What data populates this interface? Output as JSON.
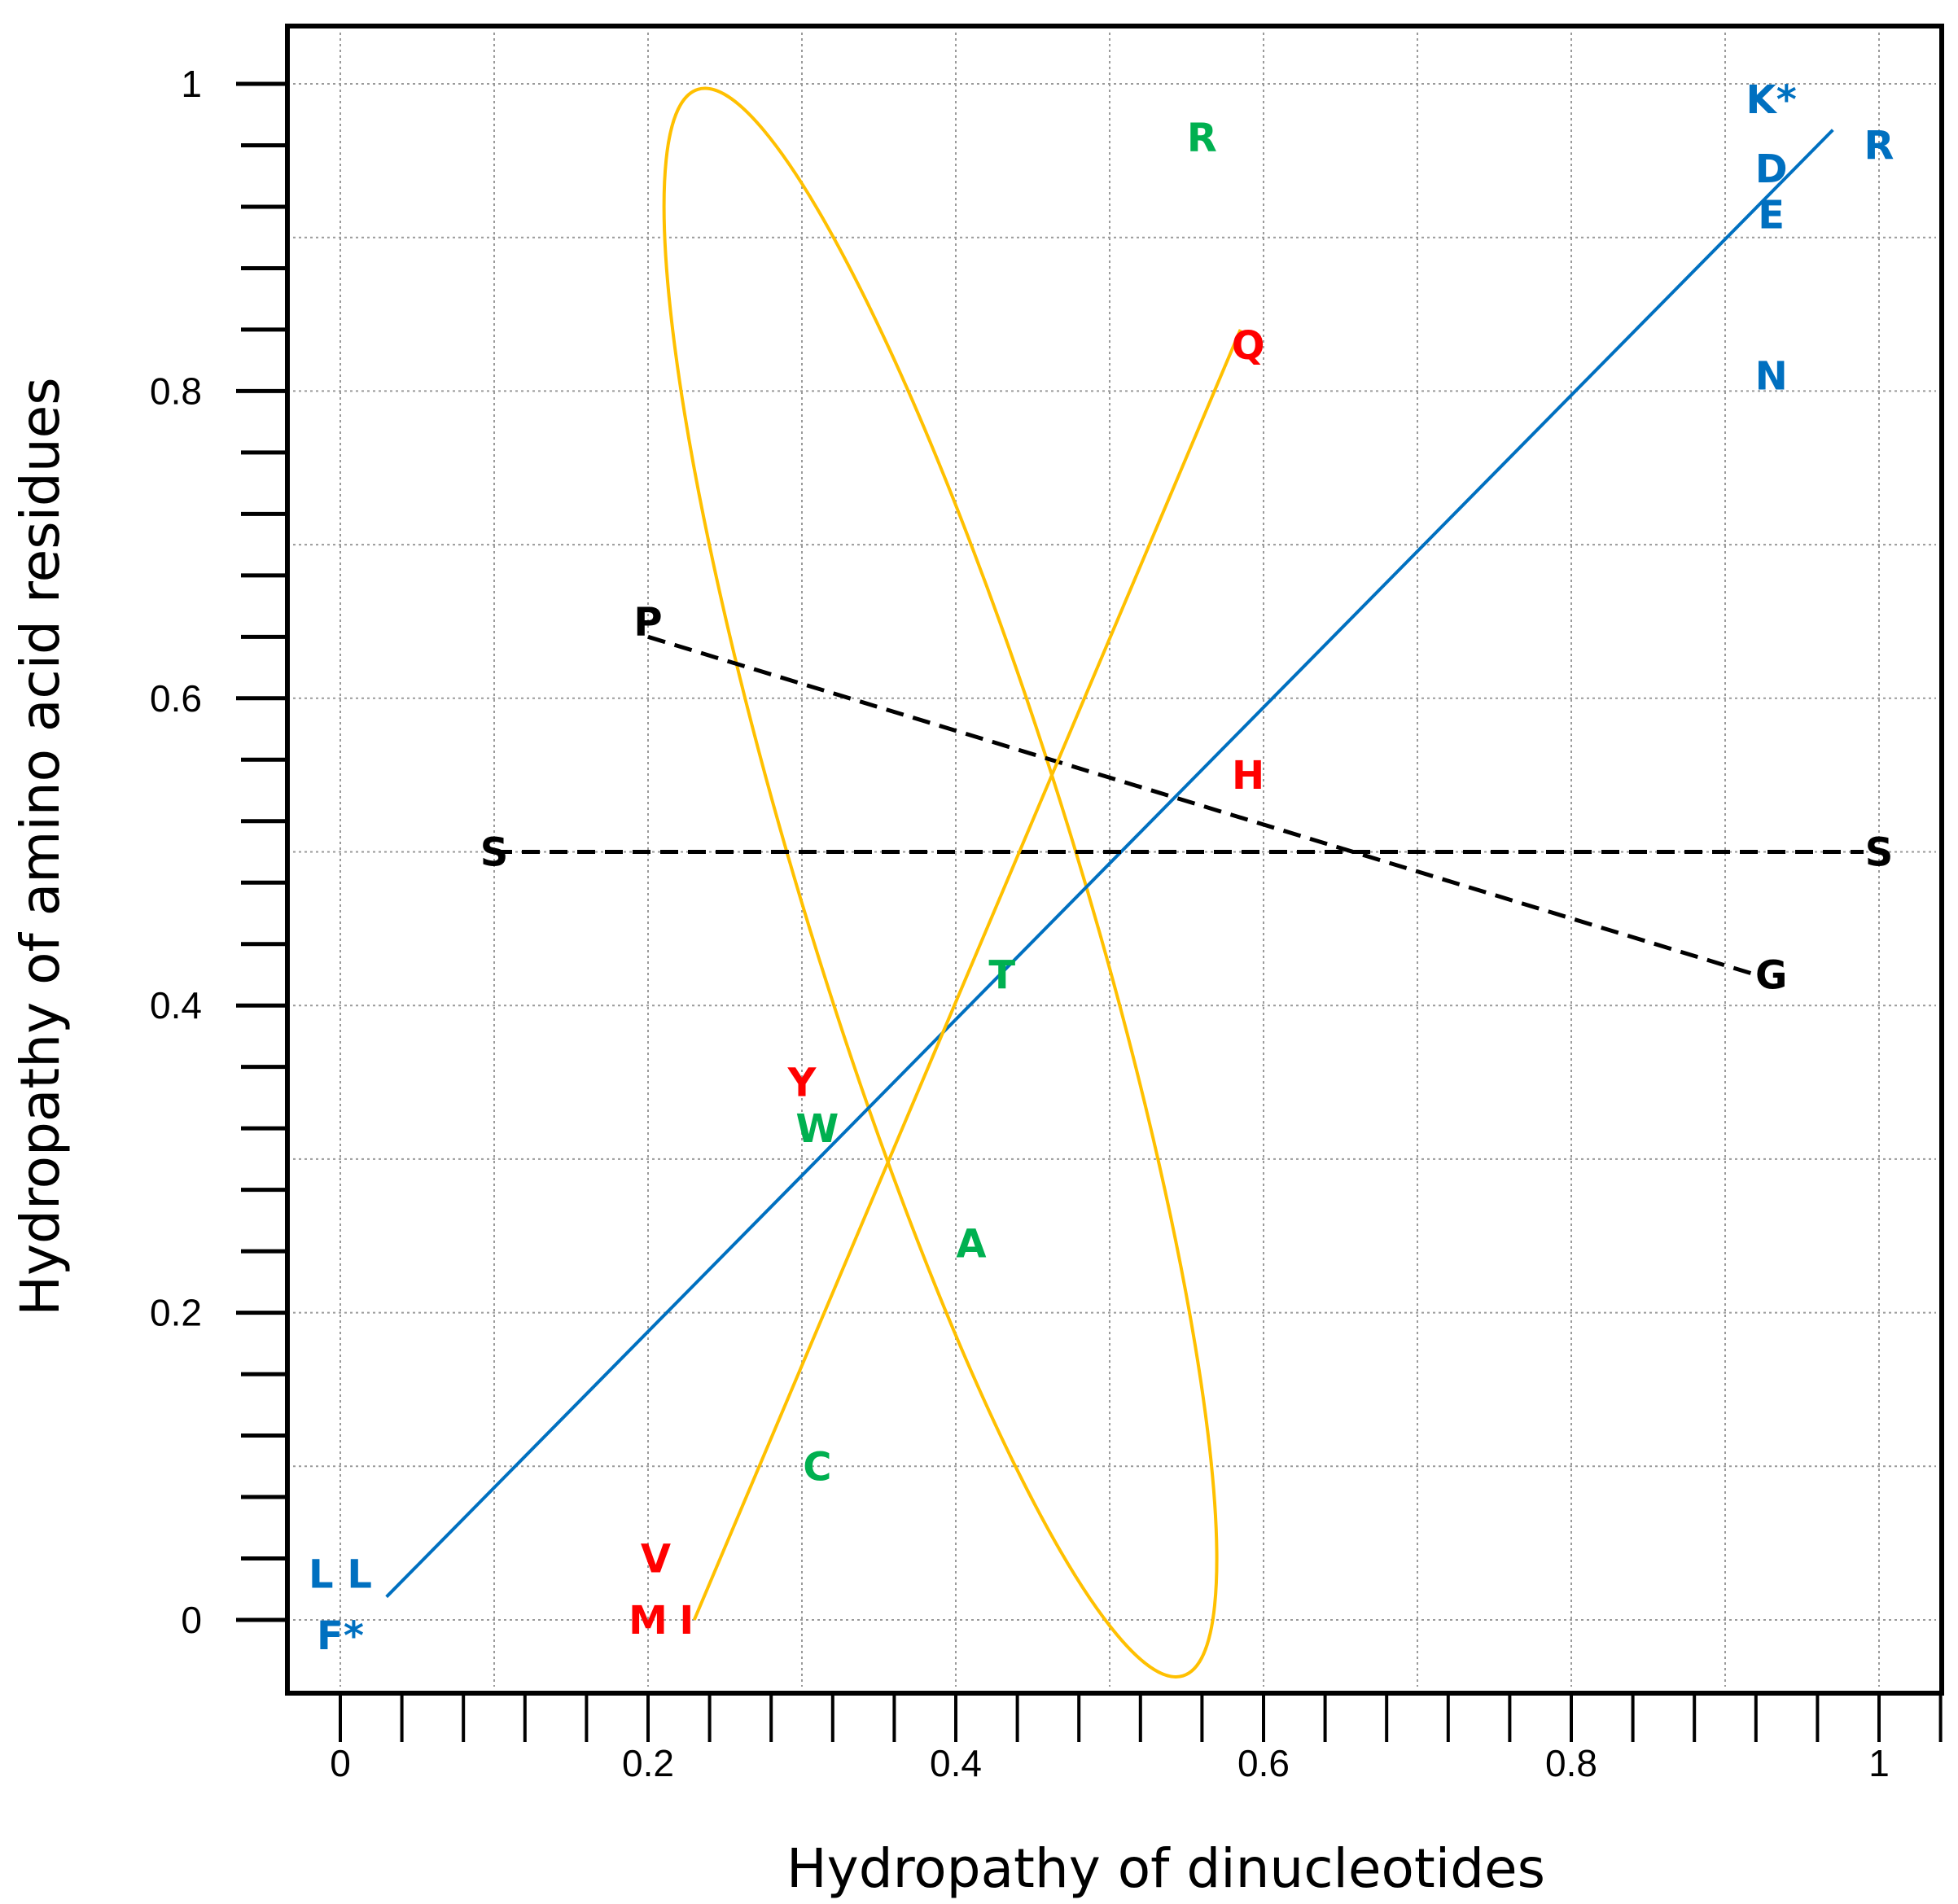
{
  "chart_data": {
    "type": "scatter",
    "title": "",
    "xlabel": "Hydropathy of dinucleotides",
    "ylabel": "Hydropathy of amino acid residues",
    "xlim": [
      -0.03,
      1.04
    ],
    "ylim": [
      -0.05,
      1.04
    ],
    "grid": true,
    "x_ticks": [
      {
        "value": 0,
        "label": "0"
      },
      {
        "value": 0.2,
        "label": "0.2"
      },
      {
        "value": 0.4,
        "label": "0.4"
      },
      {
        "value": 0.6,
        "label": "0.6"
      },
      {
        "value": 0.8,
        "label": "0.8"
      },
      {
        "value": 1,
        "label": "1"
      }
    ],
    "y_ticks": [
      {
        "value": 0,
        "label": "0"
      },
      {
        "value": 0.2,
        "label": "0.2"
      },
      {
        "value": 0.4,
        "label": "0.4"
      },
      {
        "value": 0.6,
        "label": "0.6"
      },
      {
        "value": 0.8,
        "label": "0.8"
      },
      {
        "value": 1,
        "label": "1"
      }
    ],
    "colors": {
      "blue": "#0070c0",
      "red": "#ff0000",
      "green": "#00b050",
      "black": "#000000",
      "ellipse": "#ffc000"
    },
    "points": [
      {
        "label": "L L",
        "x": 0.0,
        "y": 0.03,
        "color": "blue"
      },
      {
        "label": "F*",
        "x": 0.0,
        "y": -0.01,
        "color": "blue"
      },
      {
        "label": "M",
        "x": 0.2,
        "y": 0.0,
        "color": "red"
      },
      {
        "label": "I",
        "x": 0.225,
        "y": 0.0,
        "color": "red"
      },
      {
        "label": "V",
        "x": 0.205,
        "y": 0.04,
        "color": "red"
      },
      {
        "label": "C",
        "x": 0.31,
        "y": 0.1,
        "color": "green"
      },
      {
        "label": "A",
        "x": 0.41,
        "y": 0.245,
        "color": "green"
      },
      {
        "label": "W",
        "x": 0.31,
        "y": 0.32,
        "color": "green"
      },
      {
        "label": "Y",
        "x": 0.3,
        "y": 0.35,
        "color": "red"
      },
      {
        "label": "T",
        "x": 0.43,
        "y": 0.42,
        "color": "green"
      },
      {
        "label": "H",
        "x": 0.59,
        "y": 0.55,
        "color": "red"
      },
      {
        "label": "S",
        "x": 0.1,
        "y": 0.5,
        "color": "black"
      },
      {
        "label": "S",
        "x": 1.0,
        "y": 0.5,
        "color": "black"
      },
      {
        "label": "P",
        "x": 0.2,
        "y": 0.65,
        "color": "black"
      },
      {
        "label": "G",
        "x": 0.93,
        "y": 0.42,
        "color": "black"
      },
      {
        "label": "Q",
        "x": 0.59,
        "y": 0.83,
        "color": "red"
      },
      {
        "label": "R",
        "x": 0.56,
        "y": 0.965,
        "color": "green"
      },
      {
        "label": "N",
        "x": 0.93,
        "y": 0.81,
        "color": "blue"
      },
      {
        "label": "E",
        "x": 0.93,
        "y": 0.915,
        "color": "blue"
      },
      {
        "label": "D",
        "x": 0.93,
        "y": 0.945,
        "color": "blue"
      },
      {
        "label": "K*",
        "x": 0.93,
        "y": 0.99,
        "color": "blue"
      },
      {
        "label": "R",
        "x": 1.0,
        "y": 0.96,
        "color": "blue"
      }
    ],
    "lines": [
      {
        "name": "regression",
        "style": "solid",
        "color": "blue",
        "points": [
          [
            0.03,
            0.015
          ],
          [
            0.97,
            0.97
          ]
        ]
      },
      {
        "name": "P-G",
        "style": "dashed",
        "color": "black",
        "points": [
          [
            0.2,
            0.64
          ],
          [
            0.92,
            0.42
          ]
        ]
      },
      {
        "name": "S-S",
        "style": "dashed",
        "color": "black",
        "points": [
          [
            0.1,
            0.5
          ],
          [
            0.99,
            0.5
          ]
        ]
      },
      {
        "name": "M-Q",
        "style": "solid",
        "color": "ellipse",
        "points": [
          [
            0.23,
            0.0
          ],
          [
            0.585,
            0.84
          ]
        ]
      }
    ],
    "ellipse": {
      "cx": 0.39,
      "cy": 0.48,
      "rx": 0.09,
      "ry": 0.54,
      "rotation_deg": -17,
      "color": "ellipse"
    }
  }
}
